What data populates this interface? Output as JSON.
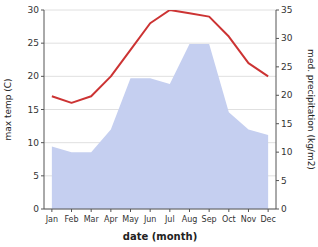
{
  "chart_data": {
    "type": "line",
    "xlabel": "date (month)",
    "ylabel": "max temp (C)",
    "y2label": "med. precipitation (kg/m2)",
    "categories": [
      "Jan",
      "Feb",
      "Mar",
      "Apr",
      "May",
      "Jun",
      "Jul",
      "Aug",
      "Sep",
      "Oct",
      "Nov",
      "Dec"
    ],
    "series": [
      {
        "type": "area",
        "color": "#c5cff0",
        "axis": "y2",
        "values": [
          11,
          10,
          10,
          14,
          23,
          23,
          22,
          29,
          29,
          17,
          14,
          13
        ]
      },
      {
        "type": "line",
        "color": "#cc3333",
        "values": [
          17,
          16,
          17,
          20,
          24,
          28,
          30,
          29.5,
          29,
          26,
          22,
          20
        ]
      }
    ],
    "ylim": [
      0,
      30
    ],
    "yticks": [
      0,
      5,
      10,
      15,
      20,
      25,
      30
    ],
    "y2lim": [
      0,
      35
    ],
    "y2ticks": [
      0,
      5,
      10,
      15,
      20,
      25,
      30,
      35
    ],
    "grid": true
  }
}
